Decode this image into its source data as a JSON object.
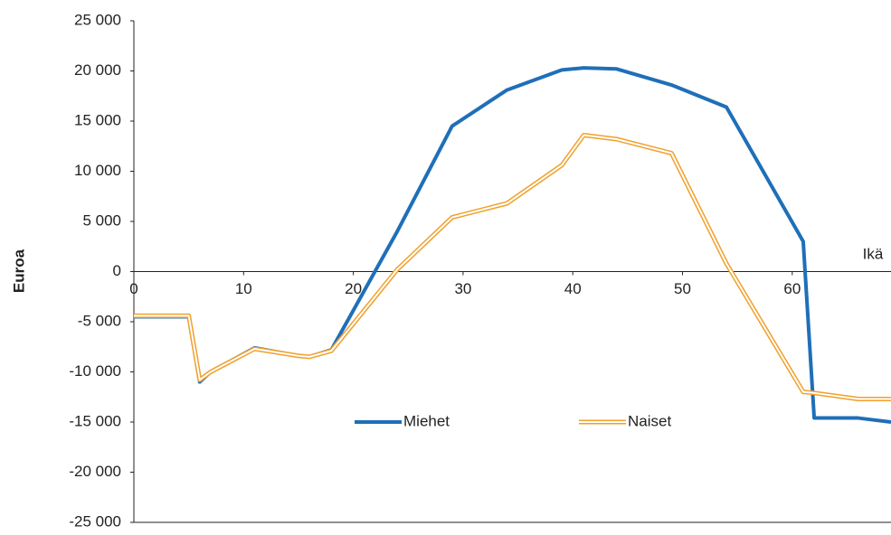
{
  "chart_data": {
    "type": "line",
    "x_label": "Ikä",
    "y_label": "Euroa",
    "x": [
      0,
      5,
      6,
      7,
      11,
      15,
      16,
      18,
      24,
      29,
      34,
      39,
      41,
      44,
      49,
      54,
      61,
      62,
      66,
      69
    ],
    "series": [
      {
        "name": "Miehet",
        "color": "#1f6fb8",
        "style": "solid",
        "values": [
          -4500,
          -4500,
          -11000,
          -10000,
          -7600,
          -8400,
          -8500,
          -7800,
          4000,
          14500,
          18100,
          20100,
          20300,
          20200,
          18600,
          16400,
          3000,
          -14600,
          -14600,
          -15000
        ]
      },
      {
        "name": "Naiset",
        "color": "#f0a02c",
        "style": "double",
        "values": [
          -4400,
          -4400,
          -10800,
          -10000,
          -7700,
          -8400,
          -8500,
          -7900,
          200,
          5400,
          6800,
          10600,
          13600,
          13200,
          11800,
          800,
          -12000,
          -12100,
          -12700,
          -12700
        ]
      }
    ],
    "xlim": [
      0,
      69
    ],
    "xticks": [
      0,
      10,
      20,
      30,
      40,
      50,
      60
    ],
    "ylim": [
      -25000,
      25000
    ],
    "yticks": [
      {
        "value": -25000,
        "label": "-25 000"
      },
      {
        "value": -20000,
        "label": "-20 000"
      },
      {
        "value": -15000,
        "label": "-15 000"
      },
      {
        "value": -10000,
        "label": "-10 000"
      },
      {
        "value": -5000,
        "label": "-5 000"
      },
      0,
      {
        "value": 5000,
        "label": "5 000"
      },
      {
        "value": 10000,
        "label": "10 000"
      },
      {
        "value": 15000,
        "label": "15 000"
      },
      {
        "value": 20000,
        "label": "20 000"
      },
      {
        "value": 25000,
        "label": "25 000"
      }
    ],
    "grid": false,
    "legend": "bottom"
  }
}
